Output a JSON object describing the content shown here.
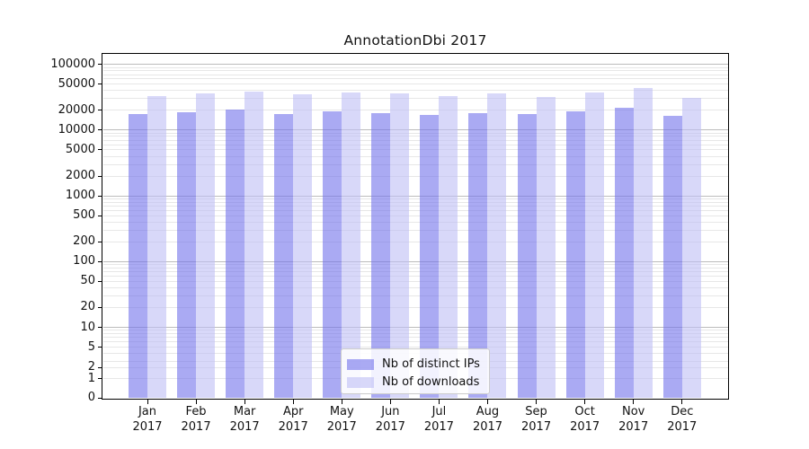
{
  "chart_data": {
    "type": "bar",
    "title": "AnnotationDbi 2017",
    "categories": [
      "Jan 2017",
      "Feb 2017",
      "Mar 2017",
      "Apr 2017",
      "May 2017",
      "Jun 2017",
      "Jul 2017",
      "Aug 2017",
      "Sep 2017",
      "Oct 2017",
      "Nov 2017",
      "Dec 2017"
    ],
    "series": [
      {
        "name": "Nb of distinct IPs",
        "color": "#7171eb",
        "alpha": 0.6,
        "values": [
          17300,
          18600,
          20600,
          17300,
          19200,
          18300,
          16800,
          18000,
          17600,
          19600,
          21800,
          16400
        ]
      },
      {
        "name": "Nb of downloads",
        "color": "#bebef5",
        "alpha": 0.6,
        "values": [
          32500,
          36200,
          38700,
          35600,
          37500,
          36200,
          32500,
          36000,
          31800,
          36800,
          43500,
          31000
        ]
      }
    ],
    "xlabel": "",
    "ylabel": "",
    "yscale": "symlog",
    "yticks": [
      0,
      1,
      2,
      5,
      10,
      20,
      50,
      100,
      200,
      500,
      1000,
      2000,
      5000,
      10000,
      20000,
      50000,
      100000
    ],
    "ytick_labels": [
      "0",
      "1",
      "2",
      "5",
      "10",
      "20",
      "50",
      "100",
      "200",
      "500",
      "1000",
      "2000",
      "5000",
      "10000",
      "20000",
      "50000",
      "100000"
    ],
    "ylim": [
      0,
      140000
    ],
    "grid": true,
    "grid_major_color": "#bcbcbc",
    "grid_minor_color": "#e7e7e7",
    "legend_position": "lower center"
  }
}
